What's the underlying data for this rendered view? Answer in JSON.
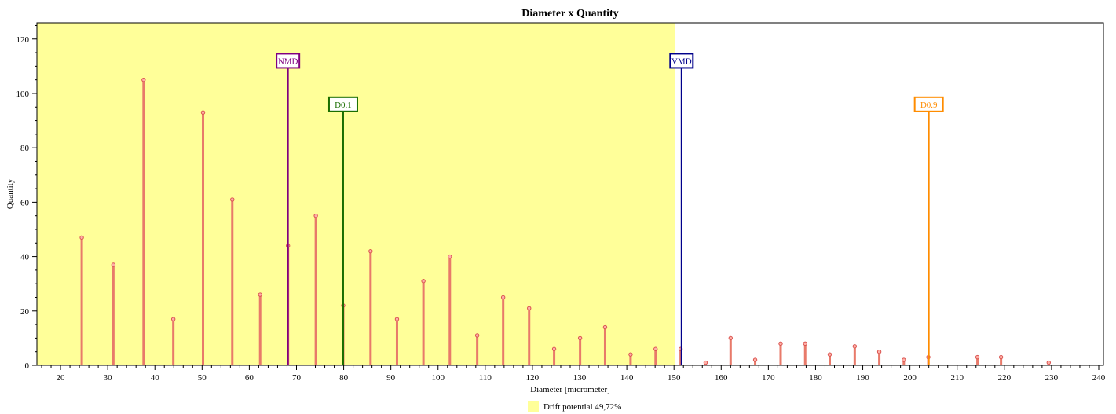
{
  "chart_data": {
    "type": "bar",
    "title": "Diameter x Quantity",
    "xlabel": "Diameter [micrometer]",
    "ylabel": "Quantity",
    "xlim": [
      15,
      241
    ],
    "ylim": [
      0,
      126
    ],
    "xticks": [
      20,
      30,
      40,
      50,
      60,
      70,
      80,
      90,
      100,
      110,
      120,
      130,
      140,
      150,
      160,
      170,
      180,
      190,
      200,
      210,
      220,
      230,
      240
    ],
    "yticks": [
      0,
      20,
      40,
      60,
      80,
      100,
      120
    ],
    "grid": false,
    "bar_color": "#e87a6a",
    "points": [
      {
        "x": 24.5,
        "y": 47
      },
      {
        "x": 31.2,
        "y": 37
      },
      {
        "x": 37.6,
        "y": 105
      },
      {
        "x": 43.9,
        "y": 17
      },
      {
        "x": 50.2,
        "y": 93
      },
      {
        "x": 56.4,
        "y": 61
      },
      {
        "x": 62.3,
        "y": 26
      },
      {
        "x": 68.2,
        "y": 44
      },
      {
        "x": 74.1,
        "y": 55
      },
      {
        "x": 79.9,
        "y": 22
      },
      {
        "x": 85.7,
        "y": 42
      },
      {
        "x": 91.3,
        "y": 17
      },
      {
        "x": 96.9,
        "y": 31
      },
      {
        "x": 102.5,
        "y": 40
      },
      {
        "x": 108.3,
        "y": 11
      },
      {
        "x": 113.8,
        "y": 25
      },
      {
        "x": 119.3,
        "y": 21
      },
      {
        "x": 124.6,
        "y": 6
      },
      {
        "x": 130.1,
        "y": 10
      },
      {
        "x": 135.4,
        "y": 14
      },
      {
        "x": 140.8,
        "y": 4
      },
      {
        "x": 146.1,
        "y": 6
      },
      {
        "x": 151.4,
        "y": 6
      },
      {
        "x": 156.7,
        "y": 1
      },
      {
        "x": 162.0,
        "y": 10
      },
      {
        "x": 167.2,
        "y": 2
      },
      {
        "x": 172.6,
        "y": 8
      },
      {
        "x": 177.8,
        "y": 8
      },
      {
        "x": 183.0,
        "y": 4
      },
      {
        "x": 188.3,
        "y": 7
      },
      {
        "x": 193.5,
        "y": 5
      },
      {
        "x": 198.7,
        "y": 2
      },
      {
        "x": 203.9,
        "y": 3
      },
      {
        "x": 214.3,
        "y": 3
      },
      {
        "x": 219.3,
        "y": 3
      },
      {
        "x": 229.4,
        "y": 1
      }
    ],
    "region": {
      "x0": 15,
      "x1": 150.3,
      "color": "#ffff99",
      "label": "Drift potential 49,72%"
    },
    "markers": [
      {
        "label": "NMD",
        "x": 68.2,
        "y": 112,
        "color": "#800080"
      },
      {
        "label": "D0.1",
        "x": 79.9,
        "y": 96,
        "color": "#1a6e00"
      },
      {
        "label": "VMD",
        "x": 151.6,
        "y": 112,
        "color": "#00008b"
      },
      {
        "label": "D0.9",
        "x": 204.0,
        "y": 96,
        "color": "#ff8c00"
      }
    ],
    "legend": {
      "position": "bottom-center",
      "entries": [
        "Drift potential 49,72%"
      ]
    }
  }
}
